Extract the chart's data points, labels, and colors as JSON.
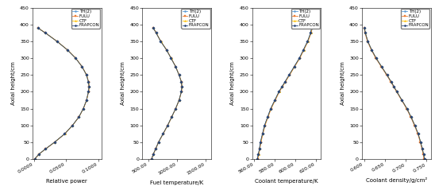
{
  "axial_heights": [
    0,
    15,
    30,
    50,
    75,
    100,
    125,
    150,
    175,
    200,
    215,
    230,
    250,
    275,
    300,
    325,
    350,
    375,
    390
  ],
  "series_labels": [
    "TH(2)",
    "FULU",
    "CTF",
    "FRAPCON"
  ],
  "series_colors": [
    "#5b9bd5",
    "#ed7d31",
    "#ffc000",
    "#264478"
  ],
  "series_linestyles": [
    "-",
    "-",
    "-",
    "-"
  ],
  "series_markers": [
    "o",
    "s",
    "^",
    "D"
  ],
  "series_markersizes": [
    1.8,
    1.8,
    1.8,
    1.8
  ],
  "relative_power": {
    "TH2": [
      0.001,
      0.008,
      0.018,
      0.032,
      0.048,
      0.06,
      0.07,
      0.077,
      0.082,
      0.085,
      0.086,
      0.085,
      0.082,
      0.075,
      0.065,
      0.052,
      0.036,
      0.018,
      0.006
    ],
    "FULU": [
      0.0012,
      0.0082,
      0.0182,
      0.0322,
      0.0482,
      0.0602,
      0.0702,
      0.0772,
      0.0822,
      0.0852,
      0.0862,
      0.0852,
      0.0822,
      0.0752,
      0.0652,
      0.0522,
      0.0362,
      0.0182,
      0.0062
    ],
    "CTF": [
      0.0011,
      0.0081,
      0.0181,
      0.0321,
      0.0481,
      0.0601,
      0.0701,
      0.0771,
      0.0821,
      0.0851,
      0.0861,
      0.0851,
      0.0821,
      0.0751,
      0.0651,
      0.0521,
      0.0361,
      0.0181,
      0.0061
    ],
    "FRAPCON": [
      0.001,
      0.008,
      0.018,
      0.032,
      0.048,
      0.06,
      0.07,
      0.077,
      0.082,
      0.085,
      0.086,
      0.085,
      0.082,
      0.075,
      0.065,
      0.052,
      0.036,
      0.018,
      0.006
    ]
  },
  "relative_power_xlim": [
    -0.002,
    0.105
  ],
  "relative_power_xticks": [
    0.0,
    0.05,
    0.1
  ],
  "relative_power_xticklabels": [
    "0.0000",
    "0.0500",
    "0.1000"
  ],
  "fuel_temp": {
    "TH2": [
      560,
      590,
      630,
      680,
      760,
      840,
      910,
      980,
      1040,
      1080,
      1090,
      1080,
      1040,
      980,
      900,
      820,
      720,
      640,
      590
    ],
    "FULU": [
      562,
      592,
      632,
      682,
      762,
      842,
      912,
      982,
      1042,
      1082,
      1092,
      1082,
      1042,
      982,
      902,
      822,
      722,
      642,
      592
    ],
    "CTF": [
      561,
      591,
      631,
      681,
      761,
      841,
      911,
      981,
      1041,
      1081,
      1091,
      1081,
      1041,
      981,
      901,
      821,
      721,
      641,
      591
    ],
    "FRAPCON": [
      560,
      590,
      630,
      680,
      760,
      840,
      910,
      980,
      1040,
      1080,
      1090,
      1080,
      1040,
      980,
      900,
      820,
      720,
      640,
      590
    ]
  },
  "fuel_temp_xlim": [
    400,
    1600
  ],
  "fuel_temp_xticks": [
    500,
    1000,
    1500
  ],
  "fuel_temp_xticklabels": [
    "500.00",
    "1000.00",
    "1500.00"
  ],
  "coolant_temp": {
    "TH2": [
      563,
      564,
      565,
      566,
      568,
      570,
      573,
      576,
      580,
      584,
      587,
      590,
      594,
      599,
      604,
      608,
      612,
      615,
      616
    ],
    "FULU": [
      563.5,
      564.5,
      565.5,
      566.5,
      568.5,
      570.5,
      573.5,
      576.5,
      580.5,
      584.5,
      587.5,
      590.5,
      594.5,
      599.5,
      604.5,
      608.5,
      612.5,
      615.5,
      616.5
    ],
    "CTF": [
      563.2,
      564.2,
      565.2,
      566.2,
      568.2,
      570.2,
      573.2,
      576.2,
      580.2,
      584.2,
      587.2,
      590.2,
      594.2,
      599.2,
      604.2,
      608.2,
      612.2,
      615.2,
      616.2
    ],
    "FRAPCON": [
      563,
      564,
      565,
      566,
      568,
      570,
      573,
      576,
      580,
      584,
      587,
      590,
      594,
      599,
      604,
      608,
      612,
      615,
      616
    ]
  },
  "coolant_temp_xlim": [
    558,
    625
  ],
  "coolant_temp_xticks": [
    560,
    580,
    600,
    620
  ],
  "coolant_temp_xticklabels": [
    "560.00",
    "580.00",
    "600.00",
    "620.00"
  ],
  "coolant_density": {
    "TH2": [
      0.745,
      0.743,
      0.74,
      0.736,
      0.73,
      0.722,
      0.713,
      0.703,
      0.691,
      0.679,
      0.672,
      0.665,
      0.655,
      0.642,
      0.629,
      0.618,
      0.609,
      0.603,
      0.601
    ],
    "FULU": [
      0.744,
      0.742,
      0.739,
      0.735,
      0.729,
      0.721,
      0.712,
      0.702,
      0.69,
      0.678,
      0.671,
      0.664,
      0.654,
      0.641,
      0.628,
      0.617,
      0.608,
      0.602,
      0.6
    ],
    "CTF": [
      0.745,
      0.743,
      0.74,
      0.736,
      0.73,
      0.722,
      0.713,
      0.703,
      0.691,
      0.679,
      0.672,
      0.665,
      0.655,
      0.642,
      0.629,
      0.618,
      0.609,
      0.603,
      0.601
    ],
    "FRAPCON": [
      0.745,
      0.743,
      0.74,
      0.736,
      0.73,
      0.722,
      0.713,
      0.703,
      0.691,
      0.679,
      0.672,
      0.665,
      0.655,
      0.642,
      0.629,
      0.618,
      0.609,
      0.603,
      0.601
    ]
  },
  "coolant_density_xlim": [
    0.595,
    0.76
  ],
  "coolant_density_xticks": [
    0.6,
    0.65,
    0.7,
    0.75
  ],
  "coolant_density_xticklabels": [
    "0.600",
    "0.650",
    "0.700",
    "0.750"
  ],
  "ylim": [
    0,
    450
  ],
  "yticks": [
    0,
    50,
    100,
    150,
    200,
    250,
    300,
    350,
    400,
    450
  ],
  "ylabel": "Axial height/cm",
  "xlabel_power": "Relative power",
  "xlabel_fuel": "Fuel temperature/K",
  "xlabel_coolant_temp": "Coolant temperature/K",
  "xlabel_coolant_density": "Coolant density/g/cm²",
  "label_fontsize": 5,
  "legend_fontsize": 4,
  "tick_fontsize": 4.5,
  "linewidth": 0.6
}
